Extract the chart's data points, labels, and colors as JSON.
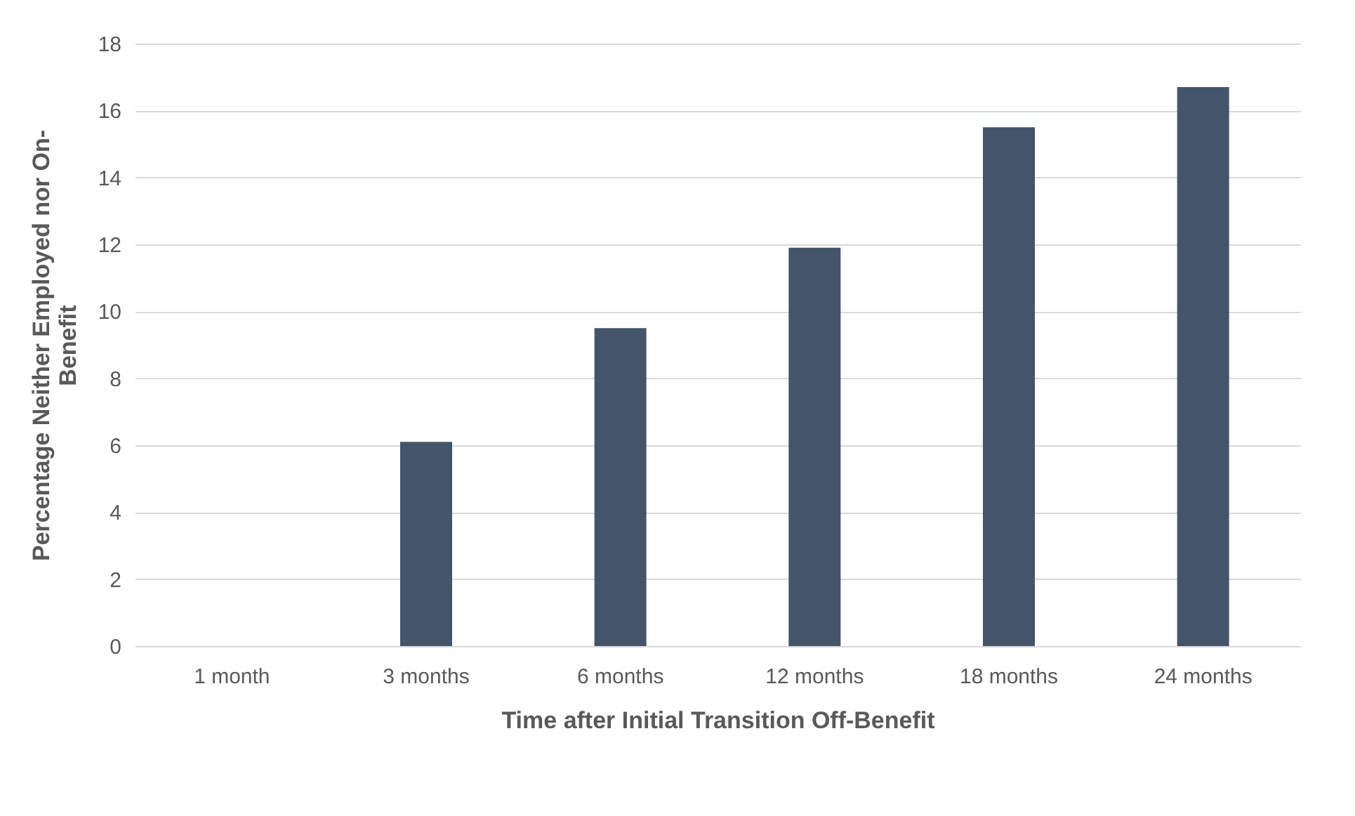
{
  "chart_data": {
    "type": "bar",
    "xlabel": "Time after Initial Transition Off-Benefit",
    "ylabel": "Percentage Neither Employed nor On-Benefit",
    "categories": [
      "1 month",
      "3 months",
      "6 months",
      "12 months",
      "18 months",
      "24 months"
    ],
    "values": [
      0,
      6.1,
      9.5,
      11.9,
      15.5,
      16.7
    ],
    "color": "#44546a",
    "ylim": [
      0,
      18
    ],
    "yticks": [
      0,
      2,
      4,
      6,
      8,
      10,
      12,
      14,
      16,
      18
    ],
    "grid": "y"
  }
}
